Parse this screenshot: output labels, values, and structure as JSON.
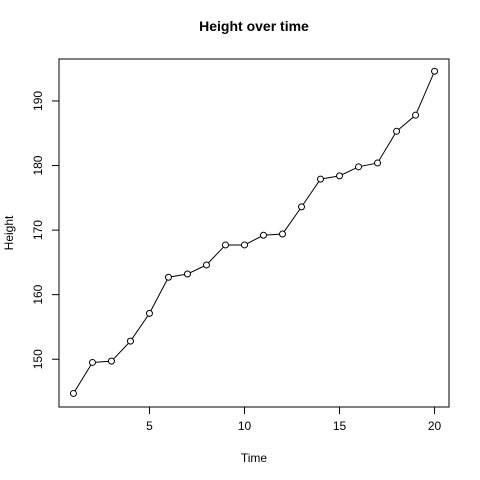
{
  "chart_data": {
    "type": "line",
    "title": "Height over time",
    "x_label": "Time",
    "y_label": "Height",
    "x": [
      1,
      2,
      3,
      4,
      5,
      6,
      7,
      8,
      9,
      10,
      11,
      12,
      13,
      14,
      15,
      16,
      17,
      18,
      19,
      20
    ],
    "series": [
      {
        "name": "Height",
        "color": "#000000",
        "values": [
          144.7,
          149.5,
          149.7,
          152.8,
          157.1,
          162.7,
          163.2,
          164.6,
          167.7,
          167.7,
          169.2,
          169.4,
          173.6,
          177.9,
          178.4,
          179.8,
          180.4,
          185.3,
          187.8,
          194.6
        ]
      }
    ],
    "xlim": [
      0.24,
      20.76
    ],
    "xticks": [
      5,
      10,
      15,
      20
    ],
    "ylim": [
      142.6,
      196.5
    ],
    "yticks": [
      150,
      160,
      170,
      180,
      190
    ],
    "markers": true
  }
}
